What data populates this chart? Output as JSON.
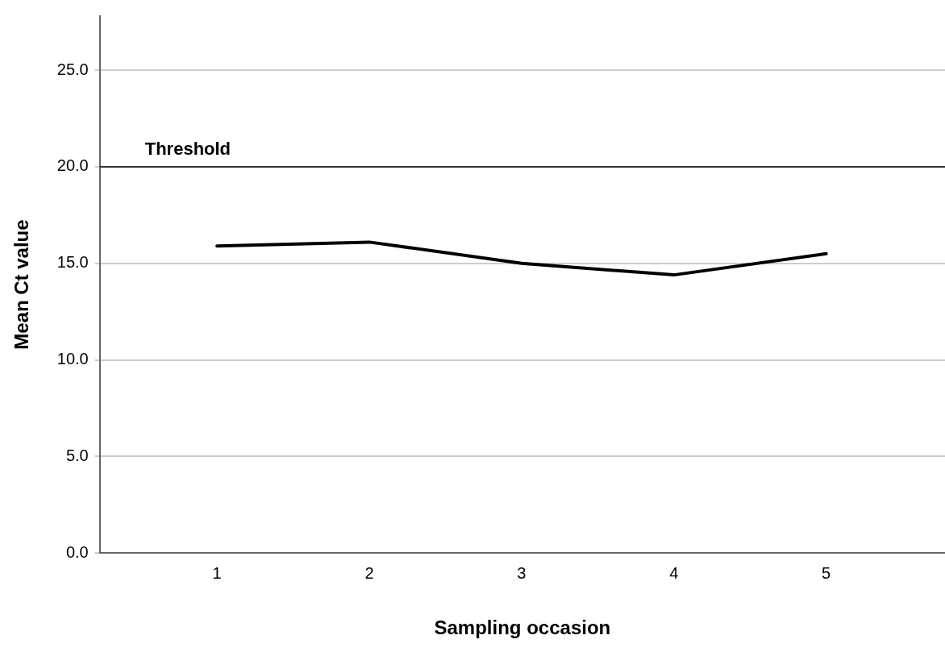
{
  "chart_data": {
    "type": "line",
    "xlabel": "Sampling occasion",
    "ylabel": "Mean Ct value",
    "x": [
      1,
      2,
      3,
      4,
      5
    ],
    "series": [
      {
        "color": "#000000",
        "values": [
          15.9,
          16.1,
          15.0,
          14.4,
          15.5
        ]
      }
    ],
    "xlim": [
      0.23,
      5.78
    ],
    "xticks": [
      1,
      2,
      3,
      4,
      5
    ],
    "ylim": [
      0,
      27.8
    ],
    "yticks": [
      {
        "value": 0,
        "label": "0.0"
      },
      {
        "value": 5,
        "label": "5.0"
      },
      {
        "value": 10,
        "label": "10.0"
      },
      {
        "value": 15,
        "label": "15.0"
      },
      {
        "value": 20,
        "label": "20.0"
      },
      {
        "value": 25,
        "label": "25.0"
      }
    ],
    "ref_lines": [
      {
        "axis": "y",
        "value": 20,
        "label": "Threshold",
        "color": "#333333"
      }
    ],
    "grid": "y",
    "legend": false,
    "marker": "none",
    "line_style": "solid"
  }
}
